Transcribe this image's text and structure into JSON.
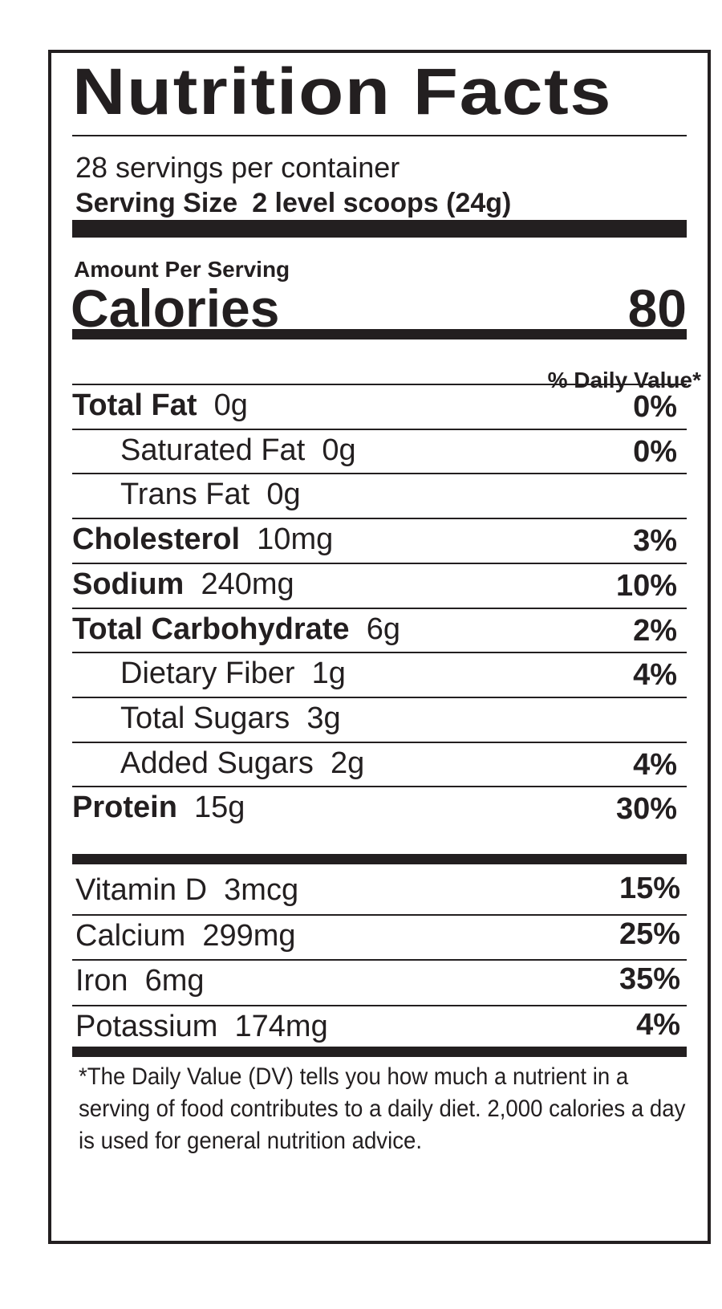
{
  "title": "Nutrition Facts",
  "servings_per_container": "28 servings per container",
  "serving_size": {
    "label": "Serving Size",
    "value": "2 level scoops (24g)"
  },
  "amount_per_serving": "Amount Per Serving",
  "calories": {
    "label": "Calories",
    "value": "80"
  },
  "daily_value_header": "% Daily Value*",
  "nutrients": [
    {
      "name": "Total Fat",
      "amount": "0g",
      "dv": "0%",
      "bold": true,
      "indent": false
    },
    {
      "name": "Saturated Fat",
      "amount": "0g",
      "dv": "0%",
      "bold": false,
      "indent": true
    },
    {
      "name": "Trans Fat",
      "amount": "0g",
      "dv": "",
      "bold": false,
      "indent": true
    },
    {
      "name": "Cholesterol",
      "amount": "10mg",
      "dv": "3%",
      "bold": true,
      "indent": false
    },
    {
      "name": "Sodium",
      "amount": "240mg",
      "dv": "10%",
      "bold": true,
      "indent": false
    },
    {
      "name": "Total Carbohydrate",
      "amount": "6g",
      "dv": "2%",
      "bold": true,
      "indent": false
    },
    {
      "name": "Dietary Fiber",
      "amount": "1g",
      "dv": "4%",
      "bold": false,
      "indent": true
    },
    {
      "name": "Total Sugars",
      "amount": "3g",
      "dv": "",
      "bold": false,
      "indent": true
    },
    {
      "name": "Added Sugars",
      "amount": "2g",
      "dv": "4%",
      "bold": false,
      "indent": true
    },
    {
      "name": "Protein",
      "amount": "15g",
      "dv": "30%",
      "bold": true,
      "indent": false
    }
  ],
  "vitamins": [
    {
      "name": "Vitamin D",
      "amount": "3mcg",
      "dv": "15%"
    },
    {
      "name": "Calcium",
      "amount": "299mg",
      "dv": "25%"
    },
    {
      "name": "Iron",
      "amount": "6mg",
      "dv": "35%"
    },
    {
      "name": "Potassium",
      "amount": "174mg",
      "dv": "4%"
    }
  ],
  "footnote": "*The Daily Value (DV) tells you how much a nutrient in a serving of food contributes to a daily diet. 2,000 calories a day is used for general nutrition advice."
}
